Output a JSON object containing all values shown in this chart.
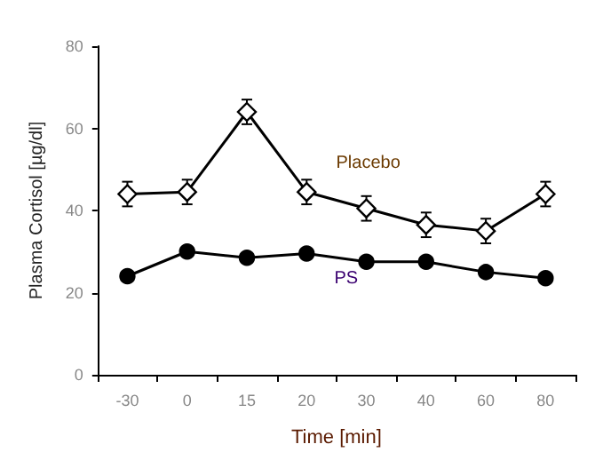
{
  "chart_data": {
    "type": "line",
    "xlabel": "Time [min]",
    "ylabel": "Plasma Cortisol [µg/dl]",
    "categories": [
      "-30",
      "0",
      "15",
      "20",
      "30",
      "40",
      "60",
      "80"
    ],
    "series": [
      {
        "name": "Placebo",
        "color": "#000000",
        "marker": "diamond",
        "values": [
          44,
          44.5,
          64,
          44.5,
          40.5,
          36.5,
          35,
          44
        ],
        "errors": [
          3,
          3,
          3,
          3,
          3,
          3,
          3,
          3
        ]
      },
      {
        "name": "PS",
        "color": "#000000",
        "marker": "circle",
        "values": [
          24,
          30,
          28.5,
          29.5,
          27.5,
          27.5,
          25,
          23.5
        ],
        "errors": [
          1,
          1,
          1,
          1,
          1,
          1,
          1,
          1
        ]
      }
    ],
    "ylim": [
      0,
      80
    ],
    "yticks": [
      0,
      20,
      40,
      60,
      80
    ],
    "grid": false,
    "legend": false
  }
}
